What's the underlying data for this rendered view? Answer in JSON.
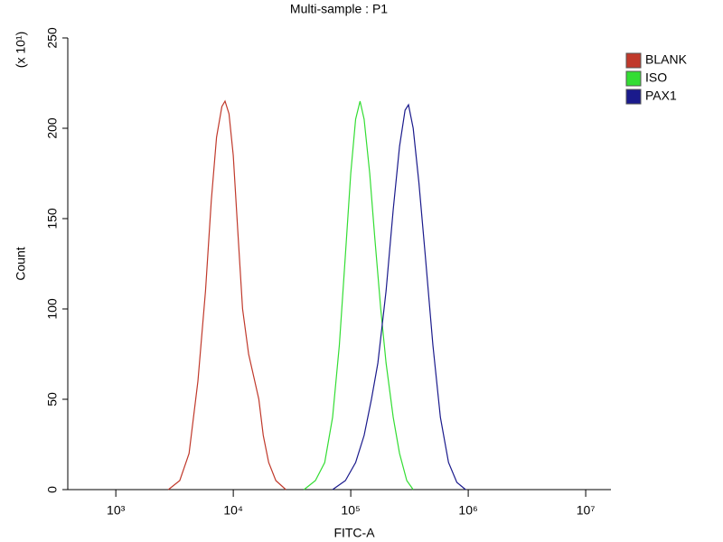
{
  "chart_data": {
    "type": "line",
    "title": "Multi-sample : P1",
    "x_label": "FITC-A",
    "y_label": "Count",
    "y_multiplier": "(x 10¹)",
    "xscale": "log",
    "xlim": [
      390,
      16400000
    ],
    "xticks": [
      {
        "value": 1000,
        "label": "10³"
      },
      {
        "value": 10000,
        "label": "10⁴"
      },
      {
        "value": 100000,
        "label": "10⁵"
      },
      {
        "value": 1000000,
        "label": "10⁶"
      },
      {
        "value": 10000000,
        "label": "10⁷"
      }
    ],
    "ylim": [
      0,
      250
    ],
    "yticks": [
      0,
      50,
      100,
      150,
      200,
      250
    ],
    "legend": "right",
    "series": [
      {
        "name": "BLANK",
        "color": "#c0392b",
        "x": [
          2800,
          3500,
          4200,
          5000,
          5800,
          6500,
          7200,
          8000,
          8500,
          9200,
          10000,
          11000,
          12000,
          13500,
          15000,
          16500,
          18000,
          20000,
          23000,
          28000
        ],
        "values": [
          0,
          5,
          20,
          60,
          110,
          160,
          195,
          212,
          215,
          208,
          185,
          140,
          100,
          75,
          62,
          50,
          30,
          15,
          5,
          0
        ]
      },
      {
        "name": "ISO",
        "color": "#33dd33",
        "x": [
          40000,
          50000,
          60000,
          70000,
          80000,
          90000,
          100000,
          110000,
          120000,
          130000,
          145000,
          160000,
          180000,
          200000,
          230000,
          260000,
          300000,
          340000
        ],
        "values": [
          0,
          5,
          15,
          40,
          80,
          130,
          175,
          205,
          215,
          205,
          175,
          140,
          100,
          70,
          40,
          20,
          5,
          0
        ]
      },
      {
        "name": "PAX1",
        "color": "#1a1a8c",
        "x": [
          70000,
          90000,
          110000,
          130000,
          150000,
          170000,
          200000,
          230000,
          260000,
          290000,
          310000,
          340000,
          380000,
          430000,
          500000,
          580000,
          680000,
          800000,
          950000
        ],
        "values": [
          0,
          5,
          15,
          30,
          50,
          70,
          110,
          155,
          190,
          210,
          213,
          200,
          170,
          130,
          80,
          40,
          15,
          4,
          0
        ]
      }
    ]
  }
}
